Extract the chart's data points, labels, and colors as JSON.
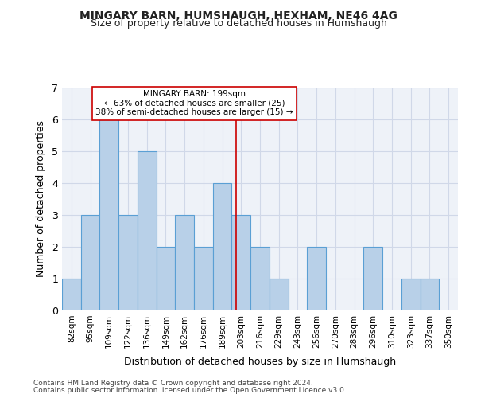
{
  "title": "MINGARY BARN, HUMSHAUGH, HEXHAM, NE46 4AG",
  "subtitle": "Size of property relative to detached houses in Humshaugh",
  "xlabel": "Distribution of detached houses by size in Humshaugh",
  "ylabel": "Number of detached properties",
  "categories": [
    "82sqm",
    "95sqm",
    "109sqm",
    "122sqm",
    "136sqm",
    "149sqm",
    "162sqm",
    "176sqm",
    "189sqm",
    "203sqm",
    "216sqm",
    "229sqm",
    "243sqm",
    "256sqm",
    "270sqm",
    "283sqm",
    "296sqm",
    "310sqm",
    "323sqm",
    "337sqm",
    "350sqm"
  ],
  "values": [
    1,
    3,
    6,
    3,
    5,
    2,
    3,
    2,
    4,
    3,
    2,
    1,
    0,
    2,
    0,
    0,
    2,
    0,
    1,
    1,
    0
  ],
  "bar_color": "#b8d0e8",
  "bar_edge_color": "#5a9fd4",
  "grid_color": "#d0d8e8",
  "background_color": "#eef2f8",
  "reference_line_value": 199,
  "ref_bin_lo": 189,
  "ref_bin_hi": 203,
  "ref_bin_lo_idx": 8,
  "reference_label": "MINGARY BARN: 199sqm",
  "annotation_line1": "← 63% of detached houses are smaller (25)",
  "annotation_line2": "38% of semi-detached houses are larger (15) →",
  "annotation_box_color": "#ffffff",
  "annotation_box_edge_color": "#cc0000",
  "vline_color": "#cc0000",
  "ylim": [
    0,
    7
  ],
  "yticks": [
    0,
    1,
    2,
    3,
    4,
    5,
    6,
    7
  ],
  "footer_line1": "Contains HM Land Registry data © Crown copyright and database right 2024.",
  "footer_line2": "Contains public sector information licensed under the Open Government Licence v3.0."
}
